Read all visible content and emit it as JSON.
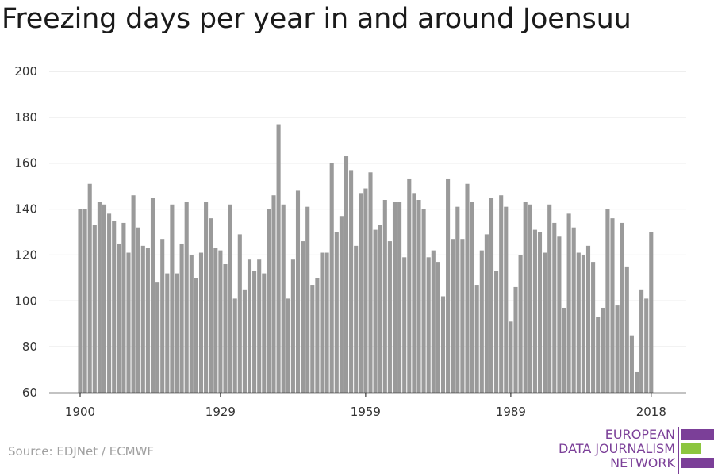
{
  "title": "Freezing days per year in and around Joensuu",
  "source": "Source: EDJNet / ECMWF",
  "logo": {
    "lines": [
      "EUROPEAN",
      "DATA JOURNALISM",
      "NETWORK"
    ],
    "colors": {
      "purple": "#7b3f98",
      "green": "#8cc63f"
    }
  },
  "colors": {
    "bar": "#9a9a9a",
    "grid": "#dddddd",
    "axis": "#111111"
  },
  "chart_data": {
    "type": "bar",
    "title": "Freezing days per year in and around Joensuu",
    "xlabel": "",
    "ylabel": "",
    "ylim": [
      60,
      200
    ],
    "yticks": [
      60,
      80,
      100,
      120,
      140,
      160,
      180,
      200
    ],
    "xticks": [
      1900,
      1929,
      1959,
      1989,
      2018
    ],
    "grid": true,
    "x": [
      1900,
      1901,
      1902,
      1903,
      1904,
      1905,
      1906,
      1907,
      1908,
      1909,
      1910,
      1911,
      1912,
      1913,
      1914,
      1915,
      1916,
      1917,
      1918,
      1919,
      1920,
      1921,
      1922,
      1923,
      1924,
      1925,
      1926,
      1927,
      1928,
      1929,
      1930,
      1931,
      1932,
      1933,
      1934,
      1935,
      1936,
      1937,
      1938,
      1939,
      1940,
      1941,
      1942,
      1943,
      1944,
      1945,
      1946,
      1947,
      1948,
      1949,
      1950,
      1951,
      1952,
      1953,
      1954,
      1955,
      1956,
      1957,
      1958,
      1959,
      1960,
      1961,
      1962,
      1963,
      1964,
      1965,
      1966,
      1967,
      1968,
      1969,
      1970,
      1971,
      1972,
      1973,
      1974,
      1975,
      1976,
      1977,
      1978,
      1979,
      1980,
      1981,
      1982,
      1983,
      1984,
      1985,
      1986,
      1987,
      1988,
      1989,
      1990,
      1991,
      1992,
      1993,
      1994,
      1995,
      1996,
      1997,
      1998,
      1999,
      2000,
      2001,
      2002,
      2003,
      2004,
      2005,
      2006,
      2007,
      2008,
      2009,
      2010,
      2011,
      2012,
      2013,
      2014,
      2015,
      2016,
      2017,
      2018
    ],
    "values": [
      140,
      140,
      151,
      133,
      143,
      142,
      138,
      135,
      125,
      134,
      121,
      146,
      132,
      124,
      123,
      145,
      108,
      127,
      112,
      142,
      112,
      125,
      143,
      120,
      110,
      121,
      143,
      136,
      123,
      122,
      116,
      142,
      101,
      129,
      105,
      118,
      113,
      118,
      112,
      140,
      146,
      177,
      142,
      101,
      118,
      148,
      126,
      141,
      107,
      110,
      121,
      121,
      160,
      130,
      137,
      163,
      157,
      124,
      147,
      149,
      156,
      131,
      133,
      144,
      126,
      143,
      143,
      119,
      153,
      147,
      144,
      140,
      119,
      122,
      117,
      102,
      153,
      127,
      141,
      127,
      151,
      143,
      107,
      122,
      129,
      145,
      113,
      146,
      141,
      91,
      106,
      120,
      143,
      142,
      131,
      130,
      121,
      142,
      134,
      128,
      97,
      138,
      132,
      121,
      120,
      124,
      117,
      93,
      97,
      140,
      136,
      98,
      134,
      115,
      85,
      69,
      105,
      101,
      130
    ]
  }
}
